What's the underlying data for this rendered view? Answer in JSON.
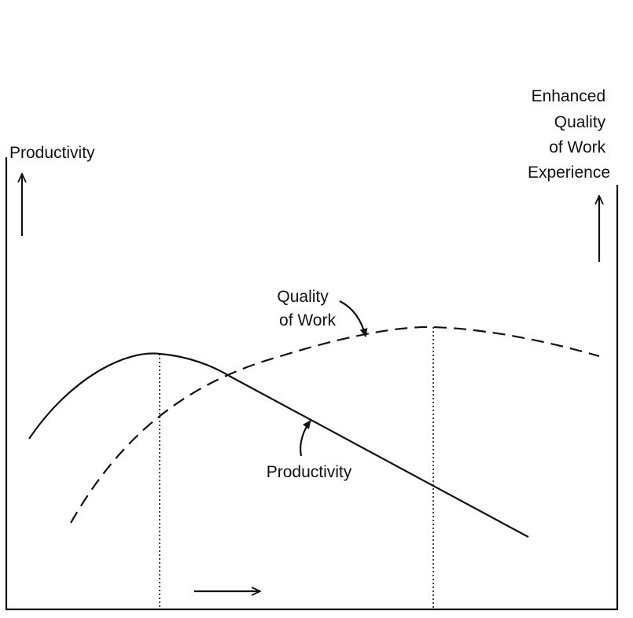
{
  "left_axis": {
    "label": "Productivity"
  },
  "right_axis": {
    "label_lines": [
      "Enhanced",
      "Quality",
      "of Work",
      "Experience"
    ]
  },
  "curves": [
    {
      "label_lines": [
        "Quality",
        "of Work"
      ]
    },
    {
      "label": "Productivity"
    }
  ]
}
